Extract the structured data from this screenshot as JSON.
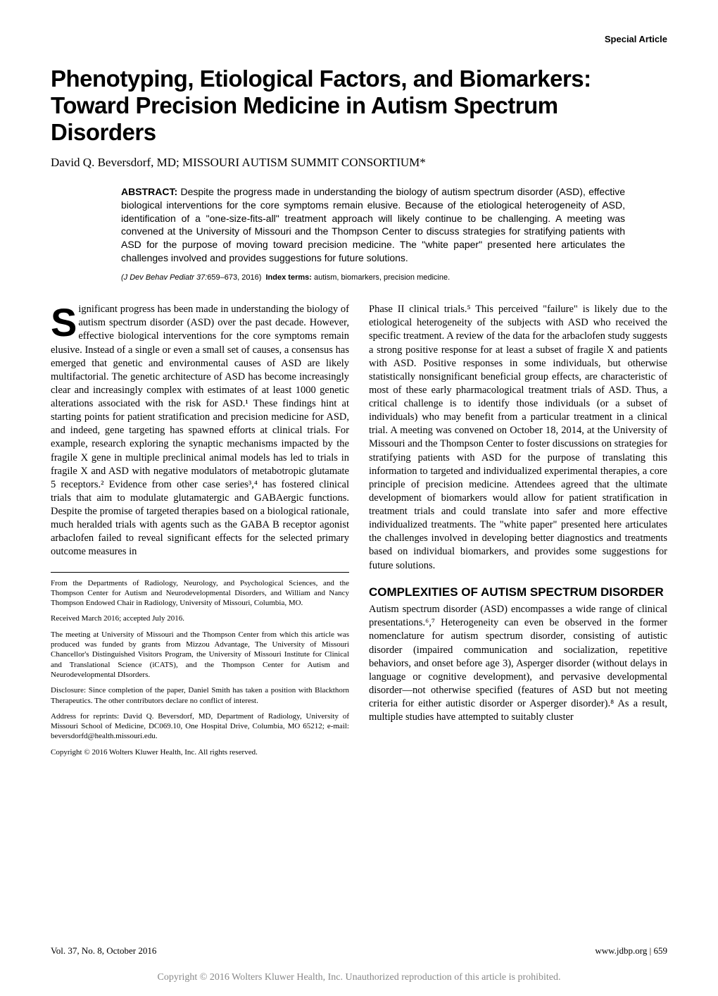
{
  "header": {
    "section_label": "Special Article"
  },
  "title": "Phenotyping, Etiological Factors, and Biomarkers: Toward Precision Medicine in Autism Spectrum Disorders",
  "authors": "David Q. Beversdorf, MD; MISSOURI AUTISM SUMMIT CONSORTIUM*",
  "abstract": {
    "label": "ABSTRACT:",
    "text": "Despite the progress made in understanding the biology of autism spectrum disorder (ASD), effective biological interventions for the core symptoms remain elusive. Because of the etiological heterogeneity of ASD, identification of a \"one-size-fits-all\" treatment approach will likely continue to be challenging. A meeting was convened at the University of Missouri and the Thompson Center to discuss strategies for stratifying patients with ASD for the purpose of moving toward precision medicine. The \"white paper\" presented here articulates the challenges involved and provides suggestions for future solutions."
  },
  "citation": {
    "journal": "(J Dev Behav Pediatr 37:",
    "pages": "659–673, 2016)",
    "index_label": "Index terms:",
    "index_terms": "autism, biomarkers, precision medicine."
  },
  "body": {
    "dropcap": "S",
    "col1_para1": "ignificant progress has been made in understanding the biology of autism spectrum disorder (ASD) over the past decade. However, effective biological interventions for the core symptoms remain elusive. Instead of a single or even a small set of causes, a consensus has emerged that genetic and environmental causes of ASD are likely multifactorial. The genetic architecture of ASD has become increasingly clear and increasingly complex with estimates of at least 1000 genetic alterations associated with the risk for ASD.¹ These findings hint at starting points for patient stratification and precision medicine for ASD, and indeed, gene targeting has spawned efforts at clinical trials. For example, research exploring the synaptic mechanisms impacted by the fragile X gene in multiple preclinical animal models has led to trials in fragile X and ASD with negative modulators of metabotropic glutamate 5 receptors.² Evidence from other case series³,⁴ has fostered clinical trials that aim to modulate glutamatergic and GABAergic functions. Despite the promise of targeted therapies based on a biological rationale, much heralded trials with agents such as the GABA B receptor agonist arbaclofen failed to reveal significant effects for the selected primary outcome measures in",
    "col2_para1": "Phase II clinical trials.⁵ This perceived \"failure\" is likely due to the etiological heterogeneity of the subjects with ASD who received the specific treatment. A review of the data for the arbaclofen study suggests a strong positive response for at least a subset of fragile X and patients with ASD. Positive responses in some individuals, but otherwise statistically nonsignificant beneficial group effects, are characteristic of most of these early pharmacological treatment trials of ASD. Thus, a critical challenge is to identify those individuals (or a subset of individuals) who may benefit from a particular treatment in a clinical trial. A meeting was convened on October 18, 2014, at the University of Missouri and the Thompson Center to foster discussions on strategies for stratifying patients with ASD for the purpose of translating this information to targeted and individualized experimental therapies, a core principle of precision medicine. Attendees agreed that the ultimate development of biomarkers would allow for patient stratification in treatment trials and could translate into safer and more effective individualized treatments. The \"white paper\" presented here articulates the challenges involved in developing better diagnostics and treatments based on individual biomarkers, and provides some suggestions for future solutions.",
    "section_heading": "COMPLEXITIES OF AUTISM SPECTRUM DISORDER",
    "col2_para2": "Autism spectrum disorder (ASD) encompasses a wide range of clinical presentations.⁶,⁷ Heterogeneity can even be observed in the former nomenclature for autism spectrum disorder, consisting of autistic disorder (impaired communication and socialization, repetitive behaviors, and onset before age 3), Asperger disorder (without delays in language or cognitive development), and pervasive developmental disorder—not otherwise specified (features of ASD but not meeting criteria for either autistic disorder or Asperger disorder).⁸ As a result, multiple studies have attempted to suitably cluster"
  },
  "footnotes": {
    "fn1": "From the Departments of Radiology, Neurology, and Psychological Sciences, and the Thompson Center for Autism and Neurodevelopmental Disorders, and William and Nancy Thompson Endowed Chair in Radiology, University of Missouri, Columbia, MO.",
    "fn2": "Received March 2016; accepted July 2016.",
    "fn3": "The meeting at University of Missouri and the Thompson Center from which this article was produced was funded by grants from Mizzou Advantage, The University of Missouri Chancellor's Distinguished Visitors Program, the University of Missouri Institute for Clinical and Translational Science (iCATS), and the Thompson Center for Autism and Neurodevelopmental DIsorders.",
    "fn4": "Disclosure: Since completion of the paper, Daniel Smith has taken a position with Blackthorn Therapeutics. The other contributors declare no conflict of interest.",
    "fn5": "Address for reprints: David Q. Beversdorf, MD, Department of Radiology, University of Missouri School of Medicine, DC069.10, One Hospital Drive, Columbia, MO 65212; e-mail: beversdorfd@health.missouri.edu.",
    "fn6": "Copyright © 2016 Wolters Kluwer Health, Inc. All rights reserved."
  },
  "footer": {
    "left": "Vol. 37, No. 8, October 2016",
    "right_url": "www.jdbp.org",
    "right_sep": " | ",
    "right_page": "659"
  },
  "copyright_strip": "Copyright © 2016 Wolters Kluwer Health, Inc. Unauthorized reproduction of this article is prohibited."
}
